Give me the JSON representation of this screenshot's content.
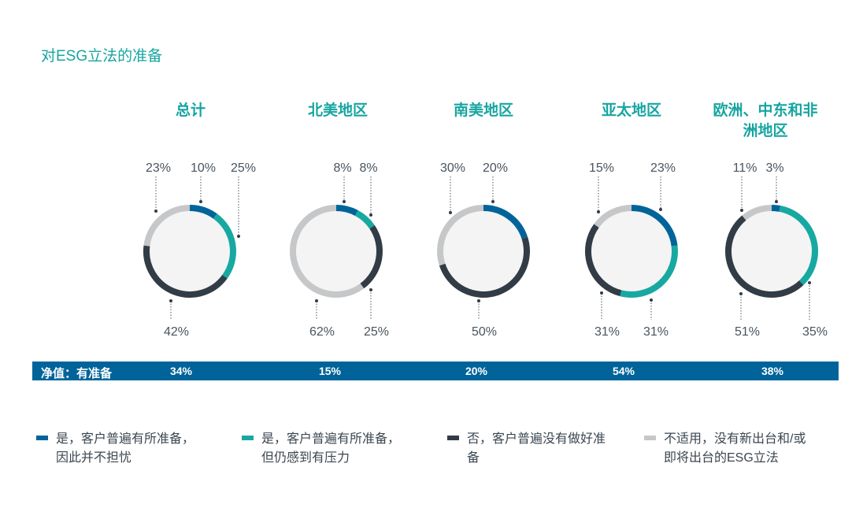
{
  "title": "对ESG立法的准备",
  "colors": {
    "yes_no_concern": "#00649a",
    "yes_pressure": "#17a9a1",
    "no": "#323c46",
    "na": "#c5c7c9"
  },
  "chart_data": {
    "type": "pie",
    "subtype": "donut",
    "title": "对ESG立法的准备",
    "categories": [
      "是，客户普遍有所准备，因此并不担忧",
      "是，客户普遍有所准备，但仍感到有压力",
      "否，客户普遍没有做好准备",
      "不适用，没有新出台和/或即将出台的ESG立法"
    ],
    "series": [
      {
        "name": "总计",
        "values": [
          10,
          25,
          42,
          23
        ],
        "net_prepared": "34%"
      },
      {
        "name": "北美地区",
        "values": [
          8,
          8,
          25,
          62
        ],
        "net_prepared": "15%"
      },
      {
        "name": "南美地区",
        "values": [
          20,
          0,
          50,
          30
        ],
        "net_prepared": "20%"
      },
      {
        "name": "亚太地区",
        "values": [
          23,
          31,
          31,
          15
        ],
        "net_prepared": "54%"
      },
      {
        "name": "欧洲、中东和非洲地区",
        "values": [
          3,
          35,
          51,
          11
        ],
        "net_prepared": "38%"
      }
    ]
  },
  "regions": [
    {
      "name": "总计",
      "labels": {
        "blue": "10%",
        "teal": "25%",
        "dark": "42%",
        "gray": "23%"
      }
    },
    {
      "name": "北美地区",
      "labels": {
        "blue": "8%",
        "teal": "8%",
        "dark": "25%",
        "gray": "62%"
      }
    },
    {
      "name": "南美地区",
      "labels": {
        "blue": "20%",
        "dark": "50%",
        "gray": "30%"
      }
    },
    {
      "name": "亚太地区",
      "labels": {
        "blue": "23%",
        "teal": "31%",
        "dark": "31%",
        "gray": "15%"
      }
    },
    {
      "name": "欧洲、中东和非洲地区",
      "labels": {
        "blue": "3%",
        "teal": "35%",
        "dark": "51%",
        "gray": "11%"
      }
    }
  ],
  "net_bar": {
    "label": "净值：有准备",
    "values": [
      "34%",
      "15%",
      "20%",
      "54%",
      "38%"
    ]
  },
  "legend": [
    {
      "color": "#00649a",
      "line1": "是，客户普遍有所准备，",
      "line2": "因此并不担忧"
    },
    {
      "color": "#17a9a1",
      "line1": "是，客户普遍有所准备，",
      "line2": "但仍感到有压力"
    },
    {
      "color": "#323c46",
      "line1": "否，客户普遍没有做好准",
      "line2": "备"
    },
    {
      "color": "#c5c7c9",
      "line1": "不适用，没有新出台和/或",
      "line2": "即将出台的ESG立法"
    }
  ]
}
